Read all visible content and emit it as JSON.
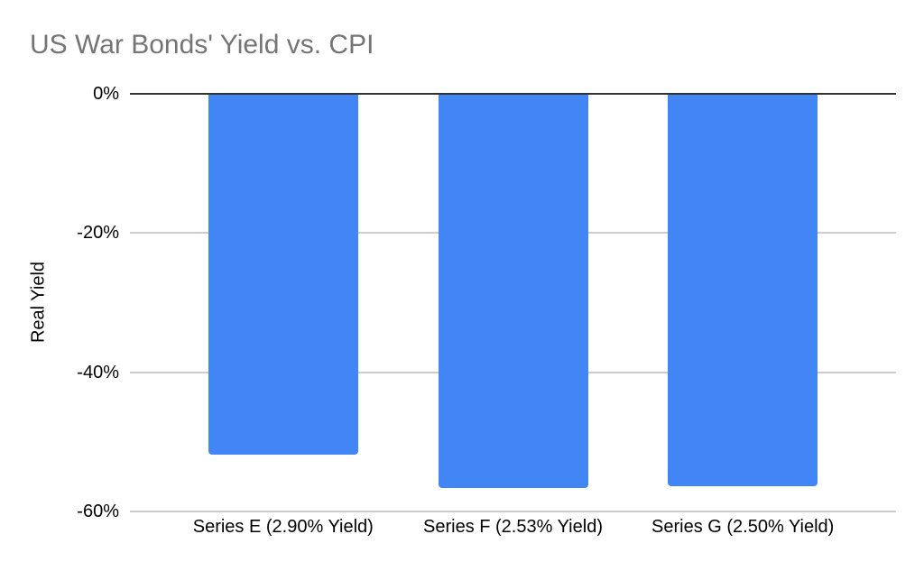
{
  "chart_data": {
    "type": "bar",
    "title": "US War Bonds' Yield vs. CPI",
    "categories": [
      "Series E (2.90% Yield)",
      "Series F (2.53% Yield)",
      "Series G (2.50% Yield)"
    ],
    "values": [
      -51.8,
      -56.6,
      -56.4
    ],
    "xlabel": "",
    "ylabel": "Real Yield",
    "ylim": [
      -60,
      0
    ],
    "yticks": [
      0,
      -20,
      -40,
      -60
    ],
    "ytick_labels": [
      "0%",
      "-20%",
      "-40%",
      "-60%"
    ],
    "grid": true,
    "legend_position": "none",
    "bar_color": "#4285f4"
  },
  "colors": {
    "background": "#ffffff",
    "title": "#757575",
    "axis_text": "#000000",
    "gridline": "#cccccc",
    "zero_line": "#333333",
    "bar": "#4285f4"
  }
}
